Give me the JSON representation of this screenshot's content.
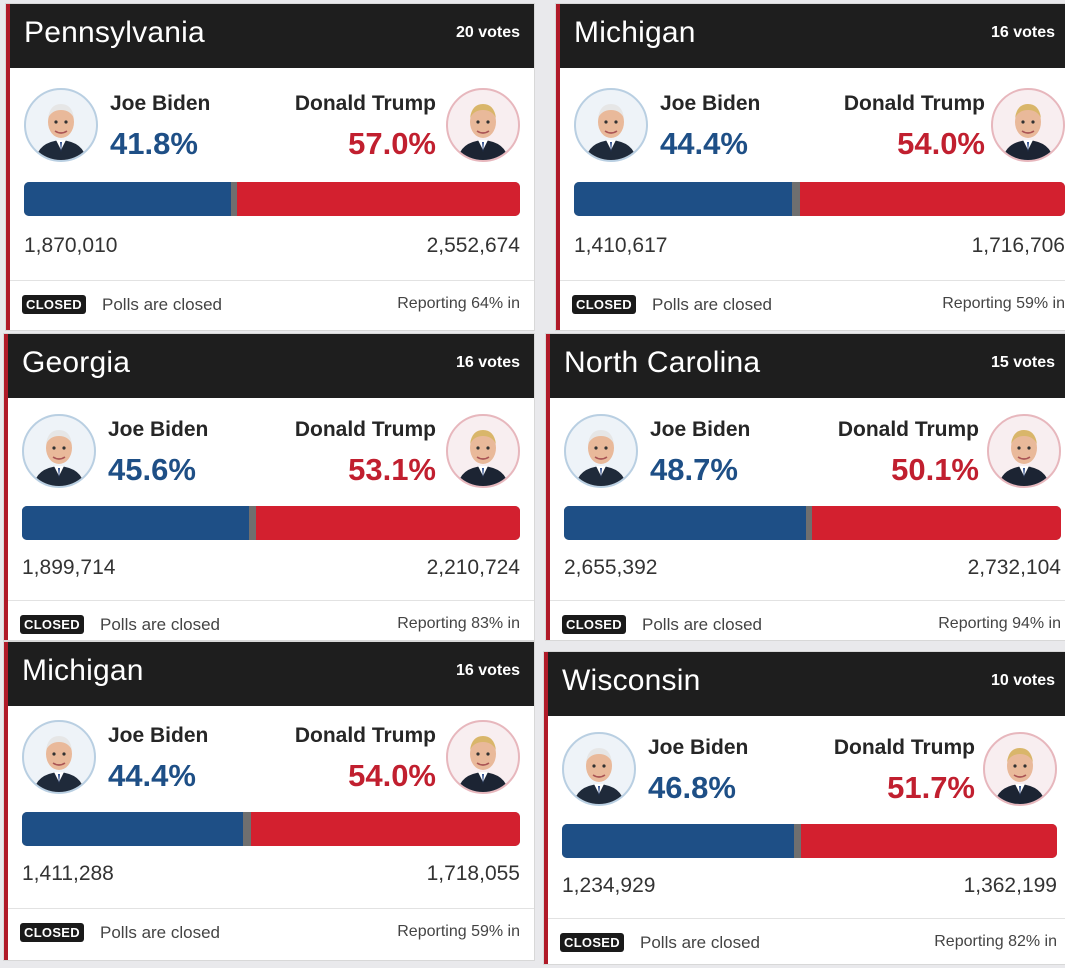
{
  "cards": [
    {
      "state": "Pennsylvania",
      "votes": "20 votes",
      "biden_name": "Joe Biden",
      "biden_pct": "41.8%",
      "trump_name": "Donald Trump",
      "trump_pct": "57.0%",
      "biden_votes": "1,870,010",
      "trump_votes": "2,552,674",
      "biden_share": 0.418,
      "trump_share": 0.57,
      "closed": "CLOSED",
      "polls": "Polls are closed",
      "reporting": "Reporting 64% in"
    },
    {
      "state": "Michigan",
      "votes": "16 votes",
      "biden_name": "Joe Biden",
      "biden_pct": "44.4%",
      "trump_name": "Donald Trump",
      "trump_pct": "54.0%",
      "biden_votes": "1,410,617",
      "trump_votes": "1,716,706",
      "biden_share": 0.444,
      "trump_share": 0.54,
      "closed": "CLOSED",
      "polls": "Polls are closed",
      "reporting": "Reporting 59% in"
    },
    {
      "state": "Georgia",
      "votes": "16 votes",
      "biden_name": "Joe Biden",
      "biden_pct": "45.6%",
      "trump_name": "Donald Trump",
      "trump_pct": "53.1%",
      "biden_votes": "1,899,714",
      "trump_votes": "2,210,724",
      "biden_share": 0.456,
      "trump_share": 0.531,
      "closed": "CLOSED",
      "polls": "Polls are closed",
      "reporting": "Reporting 83% in"
    },
    {
      "state": "North Carolina",
      "votes": "15 votes",
      "biden_name": "Joe Biden",
      "biden_pct": "48.7%",
      "trump_name": "Donald Trump",
      "trump_pct": "50.1%",
      "biden_votes": "2,655,392",
      "trump_votes": "2,732,104",
      "biden_share": 0.487,
      "trump_share": 0.501,
      "closed": "CLOSED",
      "polls": "Polls are closed",
      "reporting": "Reporting 94% in"
    },
    {
      "state": "Michigan",
      "votes": "16 votes",
      "biden_name": "Joe Biden",
      "biden_pct": "44.4%",
      "trump_name": "Donald Trump",
      "trump_pct": "54.0%",
      "biden_votes": "1,411,288",
      "trump_votes": "1,718,055",
      "biden_share": 0.444,
      "trump_share": 0.54,
      "closed": "CLOSED",
      "polls": "Polls are closed",
      "reporting": "Reporting 59% in"
    },
    {
      "state": "Wisconsin",
      "votes": "10 votes",
      "biden_name": "Joe Biden",
      "biden_pct": "46.8%",
      "trump_name": "Donald Trump",
      "trump_pct": "51.7%",
      "biden_votes": "1,234,929",
      "trump_votes": "1,362,199",
      "biden_share": 0.468,
      "trump_share": 0.517,
      "closed": "CLOSED",
      "polls": "Polls are closed",
      "reporting": "Reporting 82% in"
    }
  ],
  "colors": {
    "biden": "#1e4f86",
    "trump": "#d3202f",
    "header": "#1e1e1e"
  },
  "icons": {
    "biden": "biden-avatar-icon",
    "trump": "trump-avatar-icon"
  }
}
